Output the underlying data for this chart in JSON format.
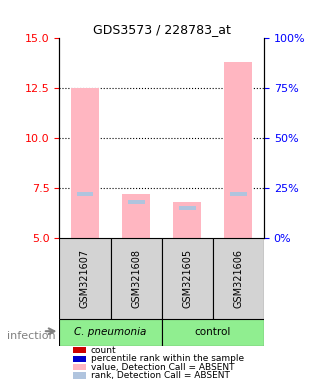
{
  "title": "GDS3573 / 228783_at",
  "samples": [
    "GSM321607",
    "GSM321608",
    "GSM321605",
    "GSM321606"
  ],
  "groups": [
    "C. pneumonia",
    "C. pneumonia",
    "control",
    "control"
  ],
  "group_colors": [
    "#90ee90",
    "#90ee90",
    "#90ee90",
    "#90ee90"
  ],
  "ylim_left": [
    5,
    15
  ],
  "ylim_right": [
    0,
    100
  ],
  "yticks_left": [
    5,
    7.5,
    10,
    12.5,
    15
  ],
  "yticks_right": [
    0,
    25,
    50,
    75,
    100
  ],
  "ytick_labels_right": [
    "0%",
    "25%",
    "50%",
    "75%",
    "100%"
  ],
  "bar_values": [
    12.5,
    7.2,
    6.8,
    13.8
  ],
  "rank_values": [
    22,
    18,
    15,
    22
  ],
  "bar_bottom": 5,
  "pink_color": "#ffb6c1",
  "blue_color": "#6699cc",
  "light_blue_color": "#b0c4de",
  "red_color": "#cc0000",
  "sample_bg_color": "#d3d3d3",
  "cpneumonia_color": "#90ee90",
  "control_color": "#90ee90",
  "legend_items": [
    {
      "color": "#cc0000",
      "label": "count"
    },
    {
      "color": "#0000cc",
      "label": "percentile rank within the sample"
    },
    {
      "color": "#ffb6c1",
      "label": "value, Detection Call = ABSENT"
    },
    {
      "color": "#b0c4de",
      "label": "rank, Detection Call = ABSENT"
    }
  ]
}
